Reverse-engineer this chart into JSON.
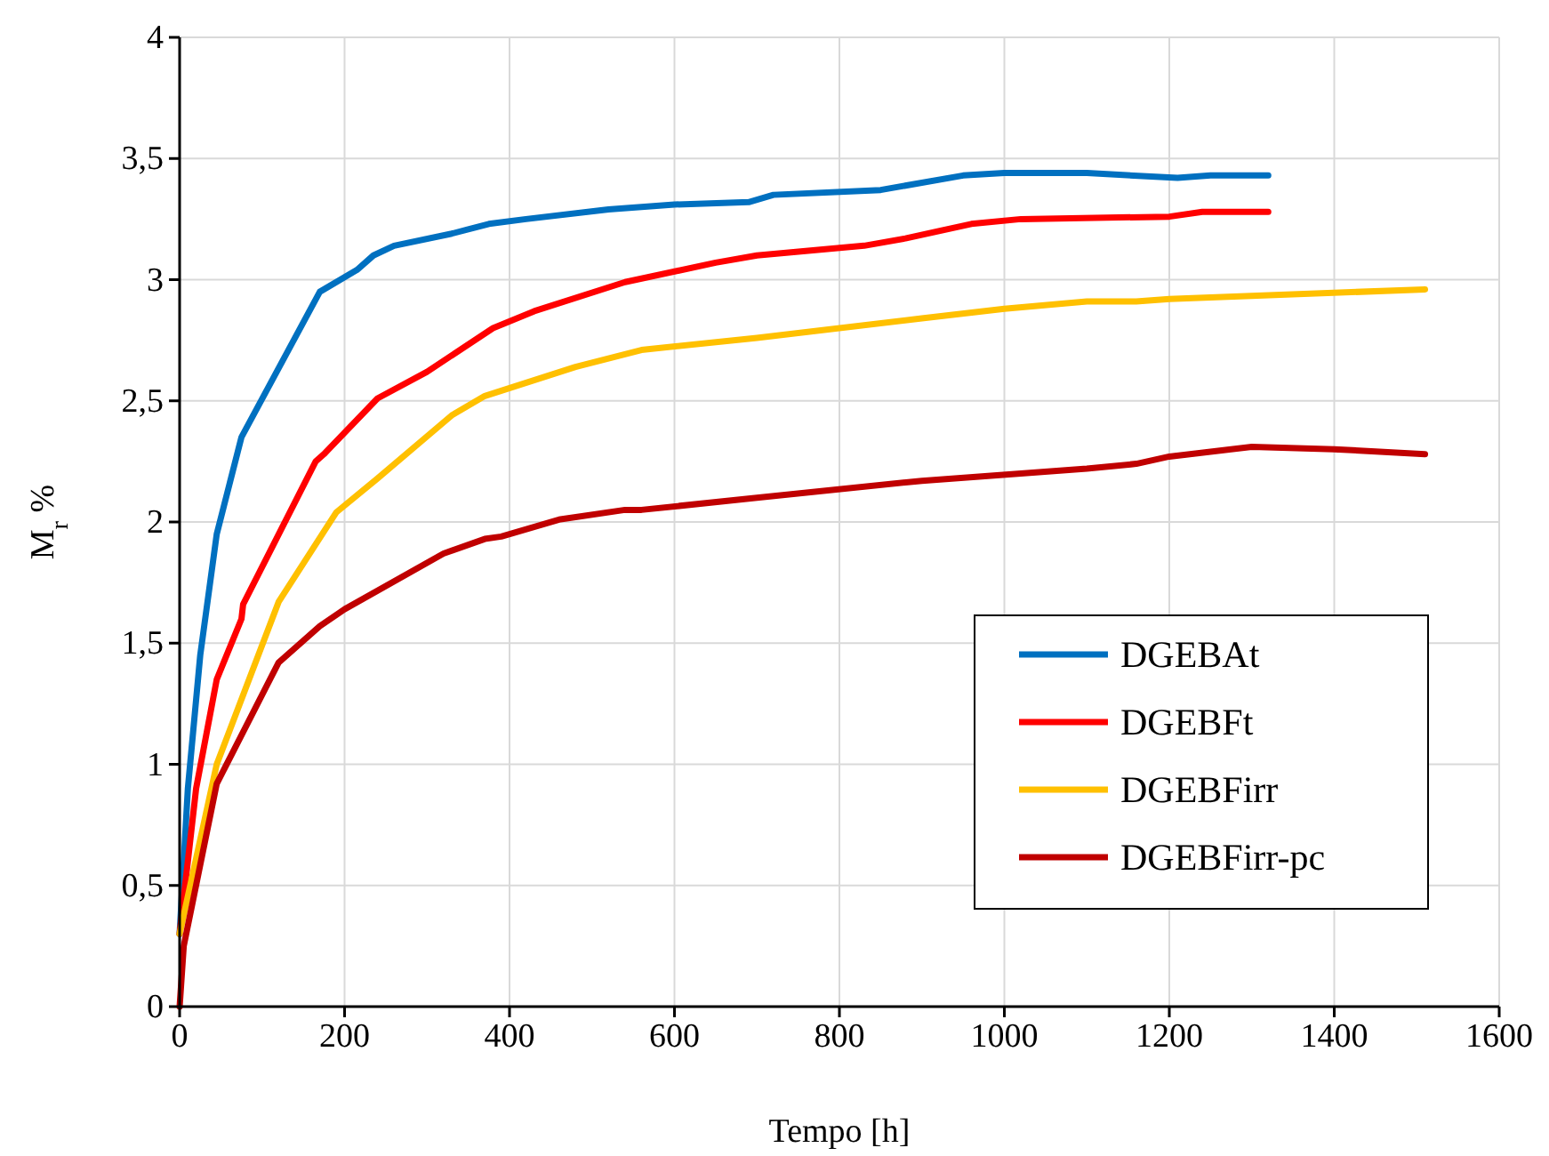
{
  "chart_data": {
    "type": "line",
    "xlabel": "Tempo [h]",
    "ylabel": "M$_{r}$ %",
    "xlim": [
      0,
      1600
    ],
    "xticks": [
      0,
      200,
      400,
      600,
      800,
      1000,
      1200,
      1400,
      1600
    ],
    "ylim": [
      0,
      4
    ],
    "yticks": [
      0,
      {
        "value": 0.5,
        "label": "0,5"
      },
      1,
      {
        "value": 1.5,
        "label": "1,5"
      },
      2,
      {
        "value": 2.5,
        "label": "2,5"
      },
      3,
      {
        "value": 3.5,
        "label": "3,5"
      },
      4
    ],
    "grid": true,
    "legend": "bottom right",
    "line_style": "solid",
    "marker": "none",
    "series": [
      {
        "name": "DGEBAt",
        "color": "#0070c0",
        "x": [
          0,
          10,
          25,
          45,
          75,
          170,
          215,
          235,
          260,
          330,
          375,
          420,
          520,
          600,
          690,
          720,
          850,
          950,
          1000,
          1100,
          1210,
          1250,
          1320
        ],
        "values": [
          0.3,
          0.9,
          1.45,
          1.95,
          2.35,
          2.95,
          3.04,
          3.1,
          3.14,
          3.19,
          3.23,
          3.25,
          3.29,
          3.31,
          3.32,
          3.35,
          3.37,
          3.43,
          3.44,
          3.44,
          3.42,
          3.43,
          3.43
        ]
      },
      {
        "name": "DGEBFt",
        "color": "#ff0000",
        "x": [
          0,
          20,
          45,
          75,
          77,
          165,
          175,
          240,
          300,
          380,
          430,
          540,
          650,
          700,
          830,
          880,
          960,
          1020,
          1200,
          1240,
          1320
        ],
        "values": [
          0.3,
          0.9,
          1.35,
          1.6,
          1.66,
          2.25,
          2.28,
          2.51,
          2.62,
          2.8,
          2.87,
          2.99,
          3.07,
          3.1,
          3.14,
          3.17,
          3.23,
          3.25,
          3.26,
          3.28,
          3.28
        ]
      },
      {
        "name": "DGEBFirr",
        "color": "#ffc000",
        "x": [
          0,
          45,
          120,
          190,
          240,
          330,
          370,
          480,
          560,
          700,
          900,
          1000,
          1100,
          1160,
          1200,
          1510
        ],
        "values": [
          0.3,
          1.0,
          1.67,
          2.04,
          2.18,
          2.44,
          2.52,
          2.64,
          2.71,
          2.76,
          2.84,
          2.88,
          2.91,
          2.91,
          2.92,
          2.96
        ]
      },
      {
        "name": "DGEBFirr-pc",
        "color": "#c00000",
        "x": [
          0,
          5,
          45,
          120,
          170,
          200,
          320,
          370,
          390,
          460,
          540,
          560,
          700,
          900,
          1100,
          1160,
          1200,
          1300,
          1400,
          1510
        ],
        "values": [
          0,
          0.25,
          0.92,
          1.42,
          1.57,
          1.64,
          1.87,
          1.93,
          1.94,
          2.01,
          2.05,
          2.05,
          2.1,
          2.17,
          2.22,
          2.24,
          2.27,
          2.31,
          2.3,
          2.28
        ]
      }
    ]
  }
}
